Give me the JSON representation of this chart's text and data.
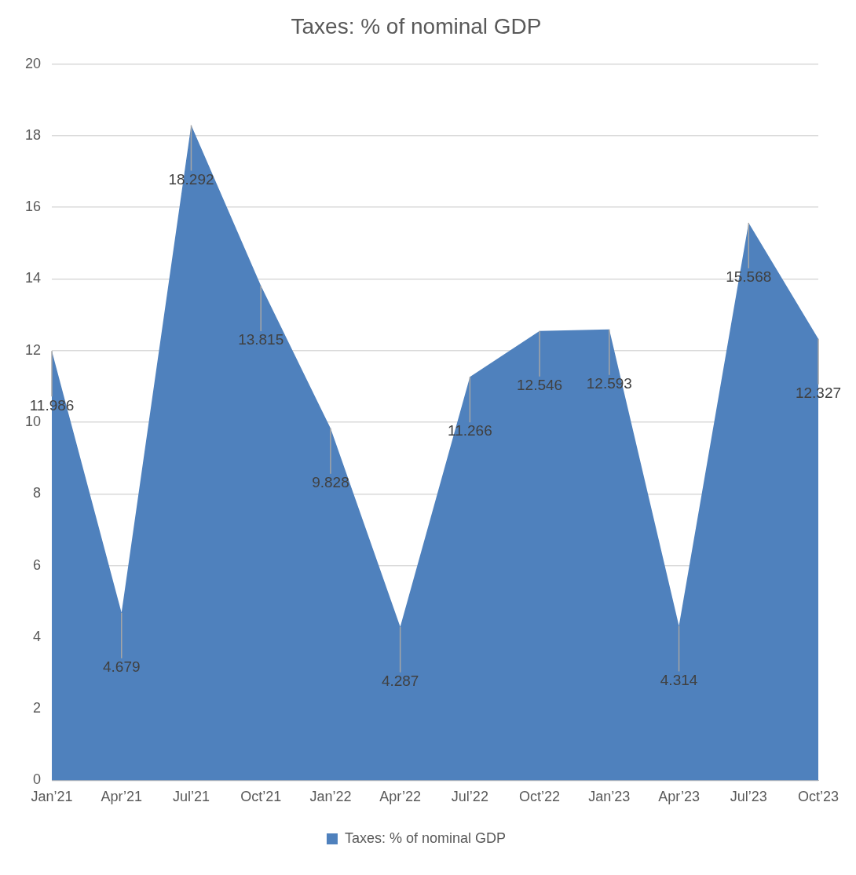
{
  "chart_data": {
    "type": "area",
    "title": "Taxes: % of nominal GDP",
    "categories": [
      "Jan’21",
      "Apr’21",
      "Jul’21",
      "Oct’21",
      "Jan’22",
      "Apr’22",
      "Jul’22",
      "Oct’22",
      "Jan’23",
      "Apr’23",
      "Jul’23",
      "Oct’23"
    ],
    "series": [
      {
        "name": "Taxes: % of nominal GDP",
        "color": "#4f81bd",
        "values": [
          11.986,
          4.679,
          18.292,
          13.815,
          9.828,
          4.287,
          11.266,
          12.546,
          12.593,
          4.314,
          15.568,
          12.327
        ]
      }
    ],
    "ylim": [
      0,
      20
    ],
    "yticks": [
      0,
      2,
      4,
      6,
      8,
      10,
      12,
      14,
      16,
      18,
      20
    ],
    "grid": "y",
    "legend": "bottom",
    "data_labels": true
  }
}
